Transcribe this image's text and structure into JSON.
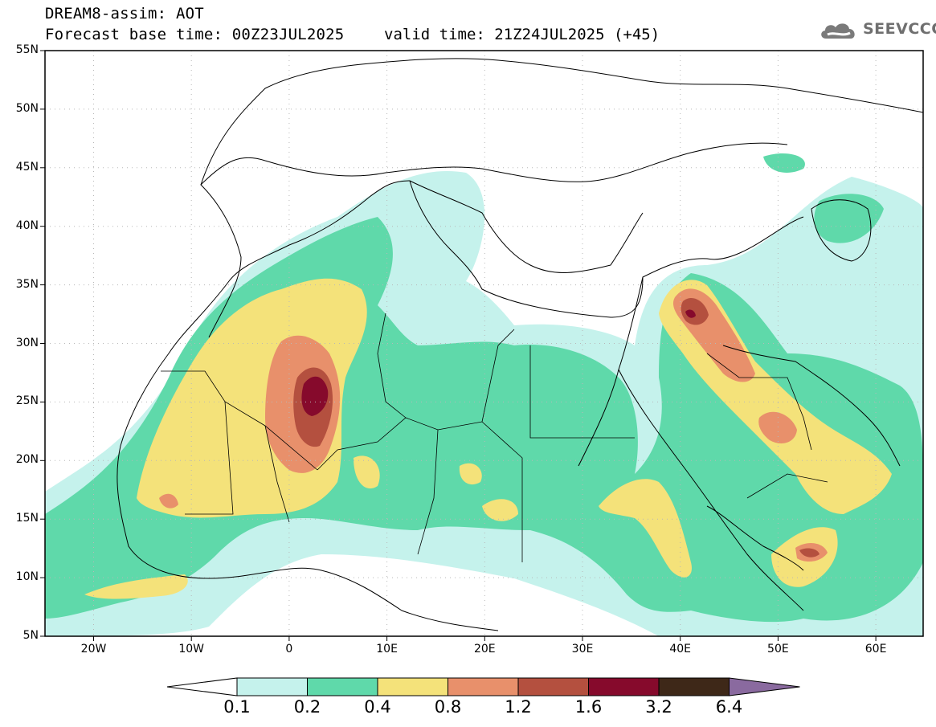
{
  "header": {
    "title": "DREAM8-assim: AOT",
    "base_time": "Forecast base time: 00Z23JUL2025",
    "valid_time": "valid time: 21Z24JUL2025 (+45)"
  },
  "logo": {
    "text": "SEEVCCC",
    "icon": "cloud-icon"
  },
  "map": {
    "lat_labels": [
      "55N",
      "50N",
      "45N",
      "40N",
      "35N",
      "30N",
      "25N",
      "20N",
      "15N",
      "10N",
      "5N"
    ],
    "lon_labels": [
      "20W",
      "10W",
      "0",
      "10E",
      "20E",
      "30E",
      "40E",
      "50E",
      "60E"
    ]
  },
  "colorbar": {
    "labels": [
      "0.1",
      "0.2",
      "0.4",
      "0.8",
      "1.2",
      "1.6",
      "3.2",
      "6.4"
    ],
    "colors": [
      "#c5f2ec",
      "#5fd9aa",
      "#f4e27a",
      "#e8906b",
      "#b4503f",
      "#860a2c",
      "#3e2818",
      "#8a6a9f"
    ]
  }
}
